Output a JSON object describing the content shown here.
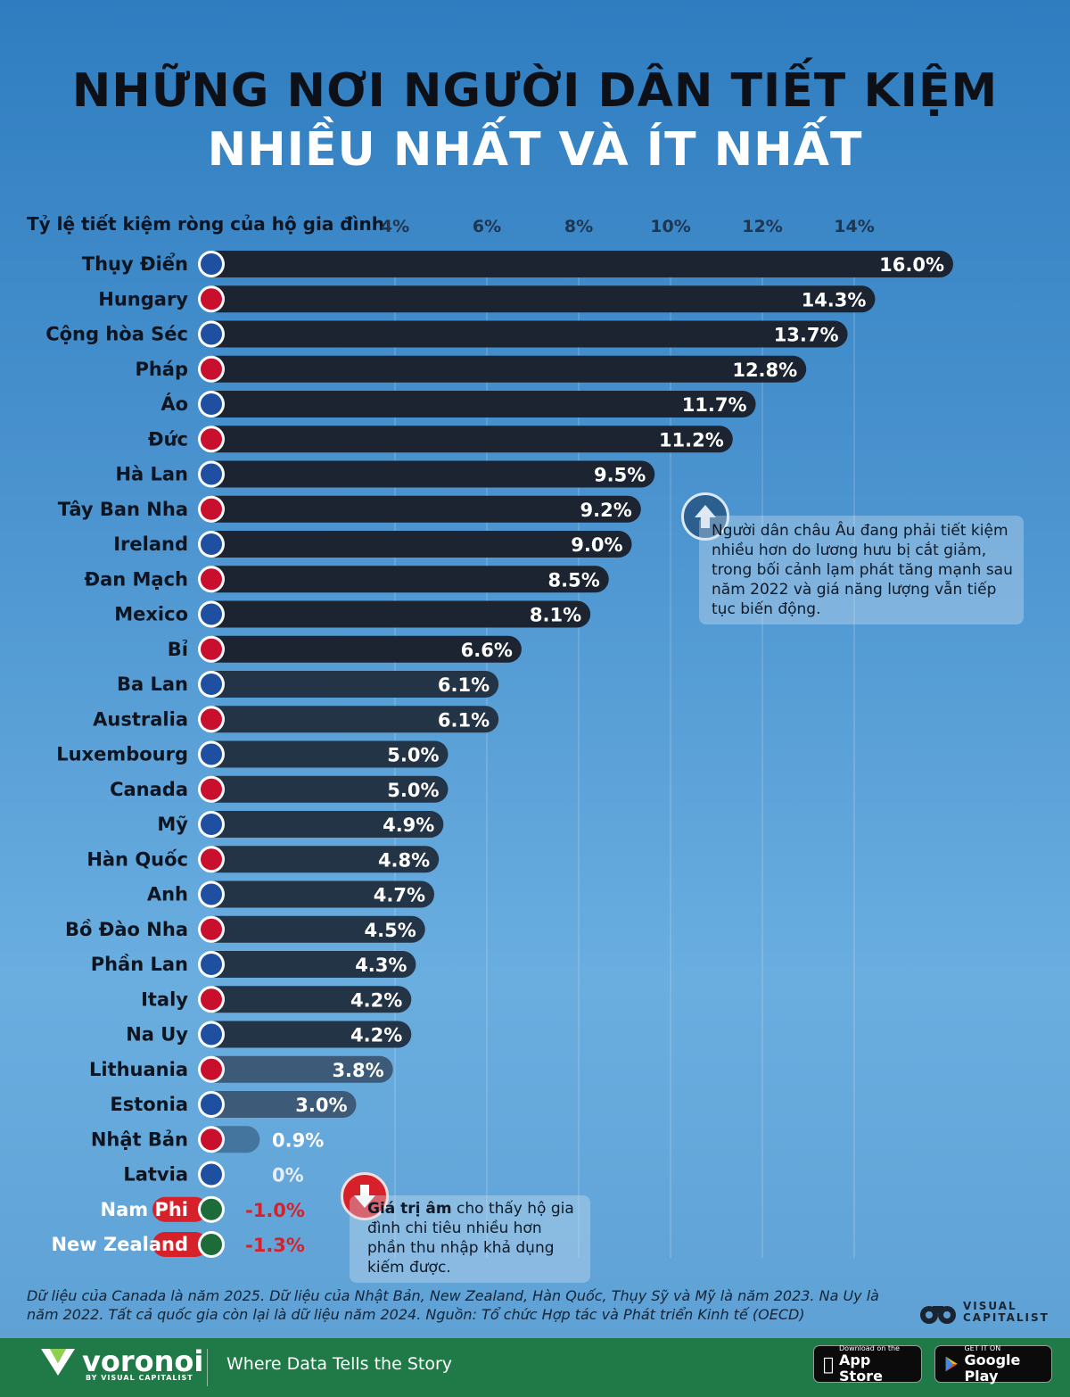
{
  "title": {
    "line1": "NHỮNG NƠI NGƯỜI DÂN TIẾT KIỆM",
    "line2": "NHIỀU NHẤT VÀ ÍT NHẤT"
  },
  "colors": {
    "bar": "#1b2430",
    "bar_light": "#3d5a78",
    "negative": "#d7212a",
    "background": "#3f8bcb",
    "footer": "#1f7a48"
  },
  "chart_data": {
    "type": "bar",
    "orientation": "horizontal",
    "title": "Tỷ lệ tiết kiệm ròng của hộ gia đình",
    "xlim": [
      0,
      16
    ],
    "ticks": [
      4,
      6,
      8,
      10,
      12,
      14
    ],
    "tick_labels": [
      "4%",
      "6%",
      "8%",
      "10%",
      "12%",
      "14%"
    ],
    "categories": [
      "Thụy Điển",
      "Hungary",
      "Cộng hòa Séc",
      "Pháp",
      "Áo",
      "Đức",
      "Hà Lan",
      "Tây Ban Nha",
      "Ireland",
      "Đan Mạch",
      "Mexico",
      "Bỉ",
      "Ba Lan",
      "Australia",
      "Luxembourg",
      "Canada",
      "Mỹ",
      "Hàn Quốc",
      "Anh",
      "Bồ Đào Nha",
      "Phần Lan",
      "Italy",
      "Na Uy",
      "Lithuania",
      "Estonia",
      "Nhật Bản",
      "Latvia",
      "Nam Phi",
      "New Zealand"
    ],
    "values": [
      16.0,
      14.3,
      13.7,
      12.8,
      11.7,
      11.2,
      9.5,
      9.2,
      9.0,
      8.5,
      8.1,
      6.6,
      6.1,
      6.1,
      5.0,
      5.0,
      4.9,
      4.8,
      4.7,
      4.5,
      4.3,
      4.2,
      4.2,
      3.8,
      3.0,
      0.9,
      0,
      -1.0,
      -1.3
    ],
    "value_labels": [
      "16.0%",
      "14.3%",
      "13.7%",
      "12.8%",
      "11.7%",
      "11.2%",
      "9.5%",
      "9.2%",
      "9.0%",
      "8.5%",
      "8.1%",
      "6.6%",
      "6.1%",
      "6.1%",
      "5.0%",
      "5.0%",
      "4.9%",
      "4.8%",
      "4.7%",
      "4.5%",
      "4.3%",
      "4.2%",
      "4.2%",
      "3.8%",
      "3.0%",
      "0.9%",
      "0%",
      "-1.0%",
      "-1.3%"
    ]
  },
  "notes": {
    "up": "Người dân châu Âu đang phải tiết kiệm nhiều hơn do lương hưu bị cắt giảm, trong bối cảnh lạm phát tăng mạnh sau năm 2022 và giá năng lượng vẫn tiếp tục biến động.",
    "down_bold": "Giá trị âm",
    "down_rest": " cho thấy hộ gia đình chi tiêu nhiều hơn phần thu nhập khả dụng kiếm được."
  },
  "footnote": "Dữ liệu của Canada là năm 2025. Dữ liệu của Nhật Bản, New Zealand, Hàn Quốc, Thụy Sỹ và Mỹ là năm 2023. Na Uy là năm 2022. Tất cả quốc gia còn lại là dữ liệu năm 2024. Nguồn: Tổ chức Hợp tác và Phát triển Kinh tế (OECD)",
  "vc_logo": {
    "line1": "VISUAL",
    "line2": "CAPITALIST"
  },
  "footer": {
    "brand": "voronoi",
    "brand_sub": "BY VISUAL CAPITALIST",
    "slogan": "Where Data Tells the Story",
    "app_store_small": "Download on the",
    "app_store_big": "App Store",
    "google_small": "GET IT ON",
    "google_big": "Google Play"
  }
}
